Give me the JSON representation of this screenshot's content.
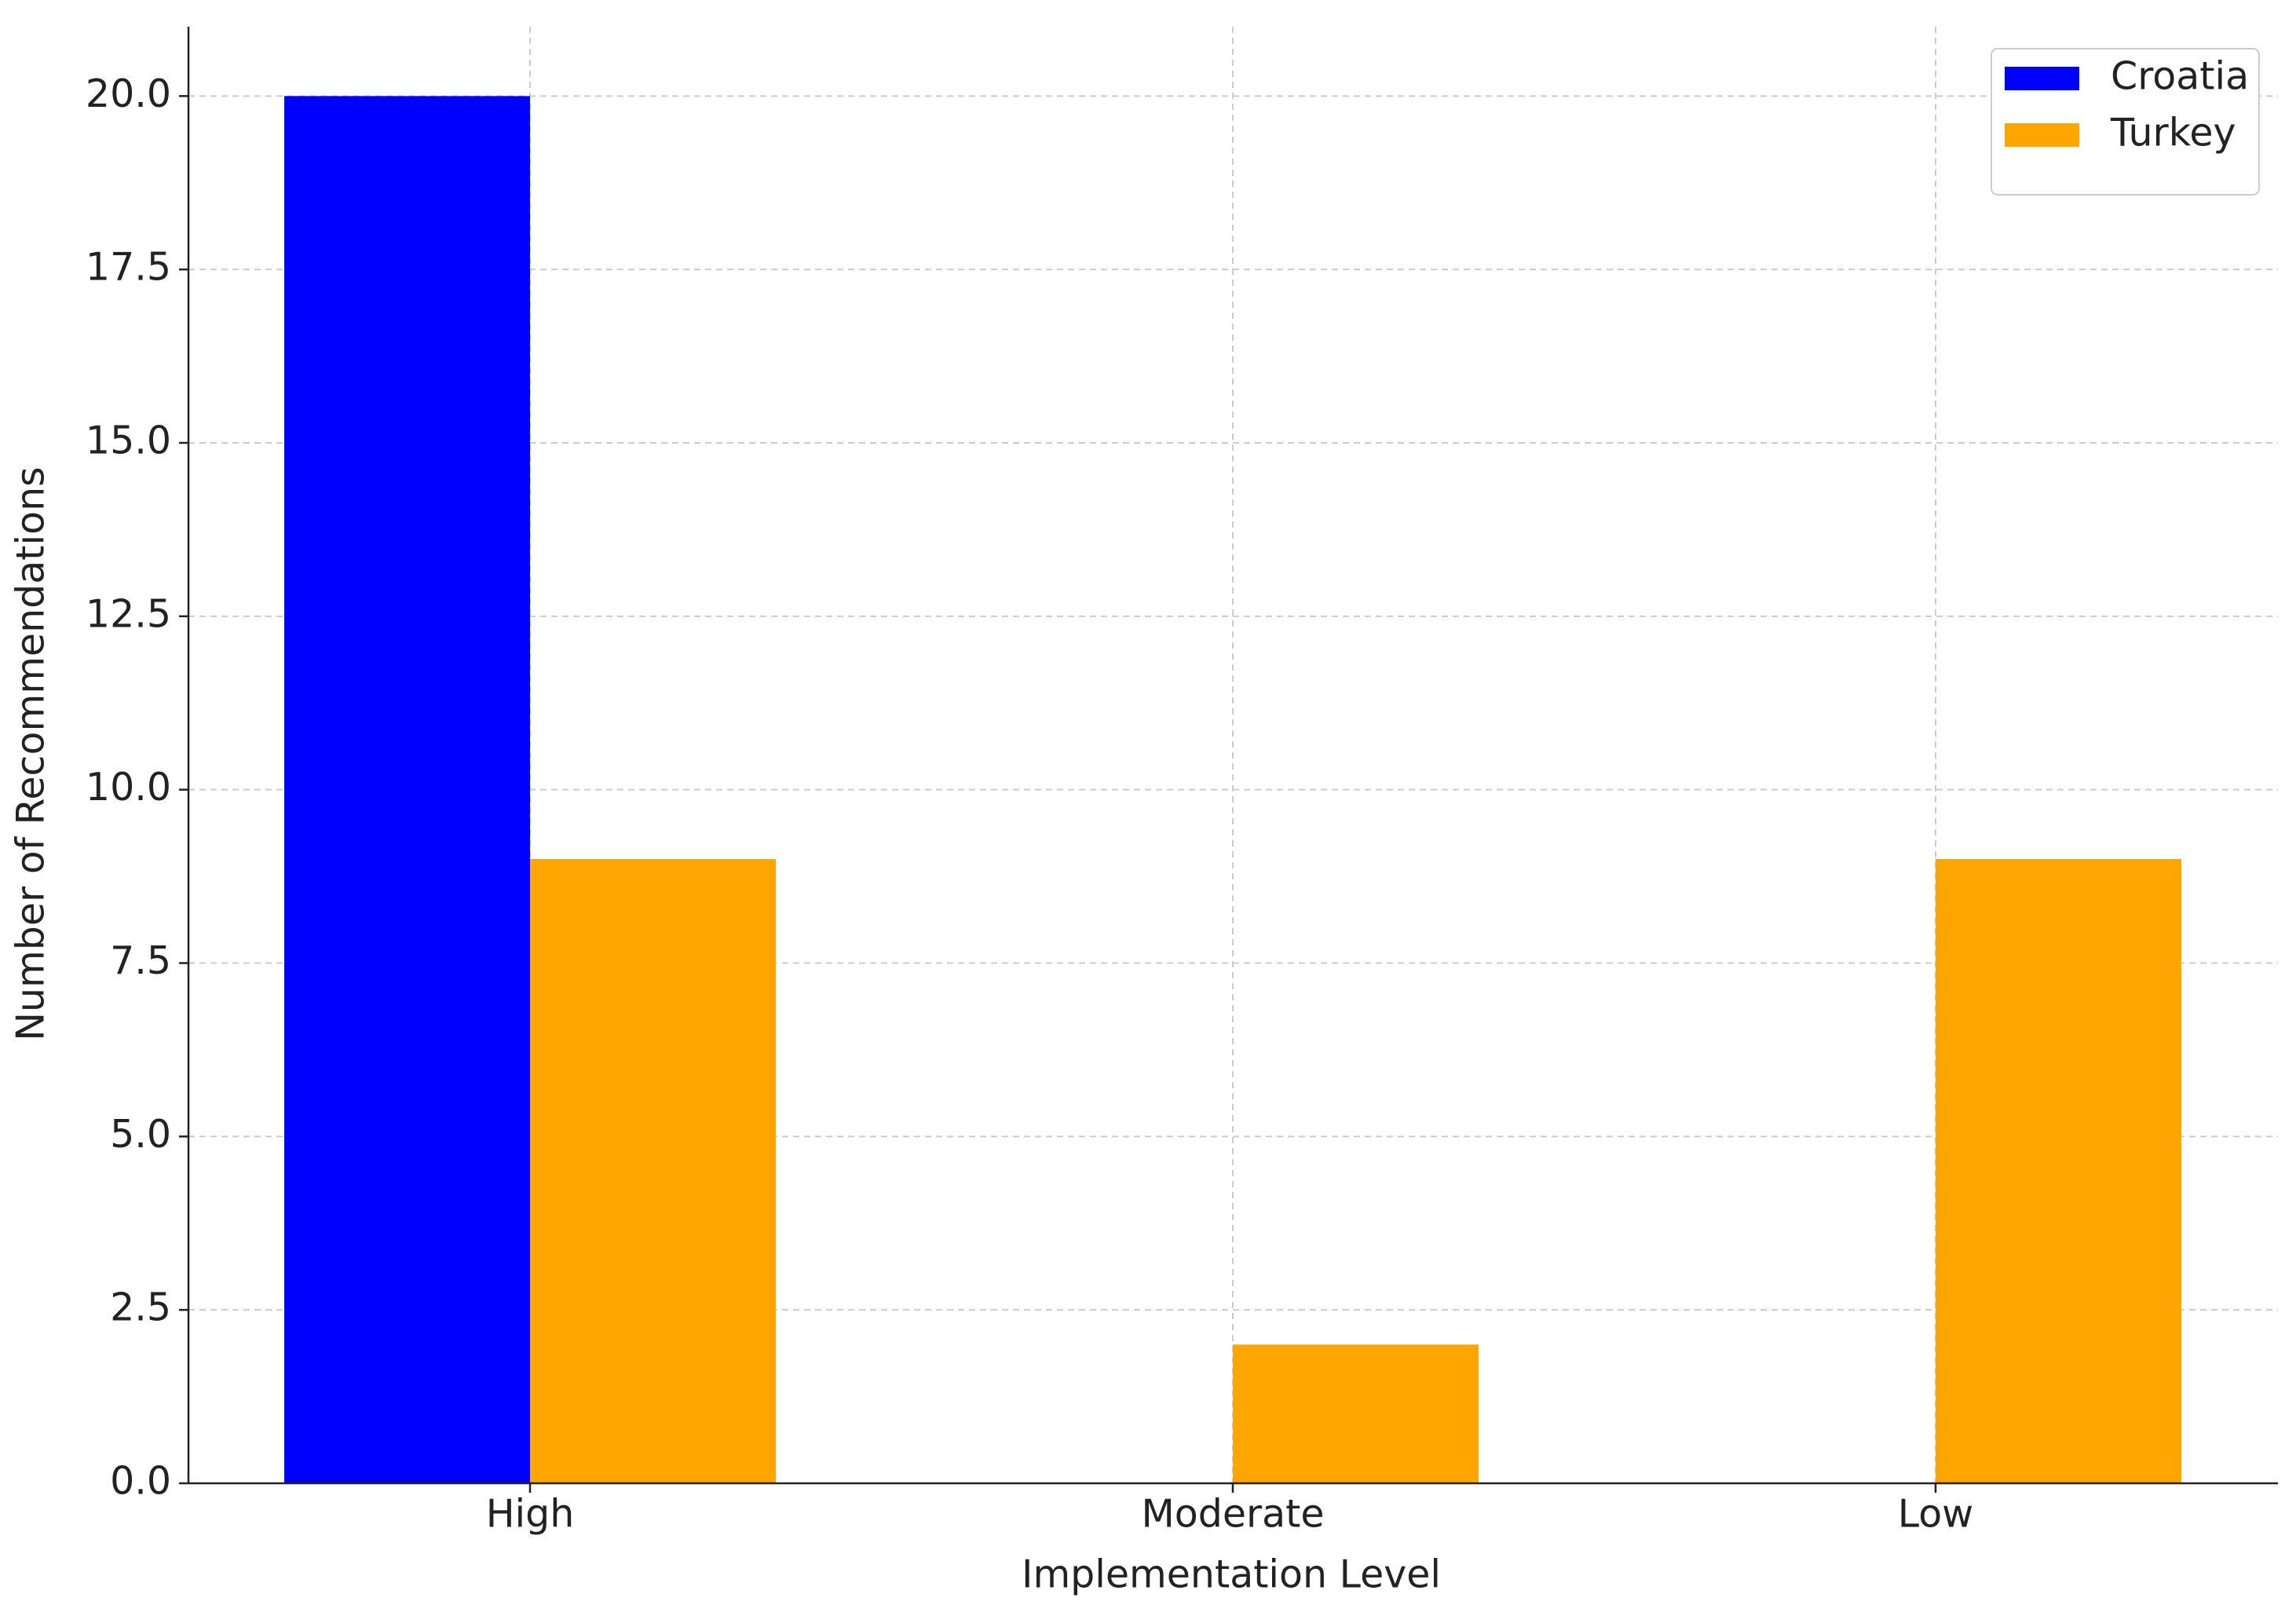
{
  "chart_data": {
    "type": "bar",
    "x_label": "Implementation Level",
    "y_label": "Number of Recommendations",
    "categories": [
      "High",
      "Moderate",
      "Low"
    ],
    "series": [
      {
        "name": "Croatia",
        "color": "#0000ff",
        "values": [
          20,
          0,
          0
        ]
      },
      {
        "name": "Turkey",
        "color": "#ffa500",
        "values": [
          9,
          2,
          9
        ]
      }
    ],
    "ylim": [
      0,
      21
    ],
    "yticks": [
      {
        "value": 0,
        "label": "0.0"
      },
      2.5,
      {
        "value": 5,
        "label": "5.0"
      },
      7.5,
      {
        "value": 10,
        "label": "10.0"
      },
      12.5,
      {
        "value": 15,
        "label": "15.0"
      },
      17.5,
      {
        "value": 20,
        "label": "20.0"
      }
    ],
    "grid": true,
    "legend": "upper right"
  }
}
